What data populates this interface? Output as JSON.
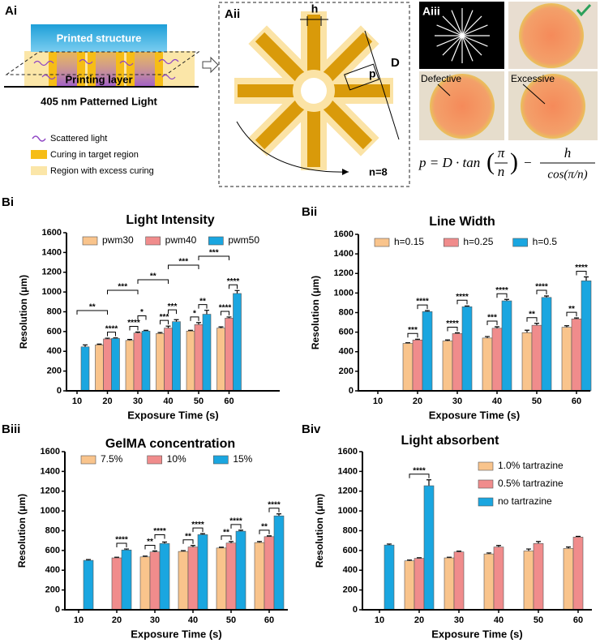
{
  "panel_a": {
    "label_i": "Ai",
    "printed_structure": "Printed structure",
    "printing_layer": "Printing layer",
    "light": "405 nm Patterned Light",
    "legend": [
      "Scattered light",
      "Curing in target region",
      "Region with excess curing"
    ],
    "label_ii": "Aii",
    "h": "h",
    "D": "D",
    "p": "p",
    "n": "n=8",
    "label_iii": "Aiii",
    "defective": "Defective",
    "excessive": "Excessive",
    "formula": {
      "lhs": "p = D · tan",
      "open": "(",
      "frac1_num": "π",
      "frac1_den": "n",
      "close": ")",
      "minus": "−",
      "frac2_num": "h",
      "frac2_den": "cos(π/n)"
    }
  },
  "chart_data": [
    {
      "type": "bar",
      "panel_label": "Bi",
      "title": "Light Intensity",
      "xlabel": "Exposure Time (s)",
      "ylabel": "Resolution (μm)",
      "categories": [
        "10",
        "20",
        "30",
        "40",
        "50",
        "60"
      ],
      "series": [
        {
          "name": "pwm30",
          "color": "#f9c48c",
          "values": [
            null,
            465,
            510,
            580,
            605,
            635
          ],
          "errors": [
            null,
            8,
            10,
            10,
            8,
            12
          ]
        },
        {
          "name": "pwm40",
          "color": "#f08c8c",
          "values": [
            null,
            525,
            585,
            635,
            670,
            735
          ],
          "errors": [
            null,
            8,
            10,
            20,
            20,
            12
          ]
        },
        {
          "name": "pwm50",
          "color": "#1aa6e0",
          "values": [
            445,
            530,
            605,
            700,
            775,
            985
          ],
          "errors": [
            20,
            6,
            8,
            20,
            40,
            30
          ]
        }
      ],
      "ylim": [
        0,
        1600
      ],
      "yticks": [
        0,
        200,
        400,
        600,
        800,
        1000,
        1200,
        1400,
        1600
      ],
      "legend": "top",
      "annotations": [
        "**",
        "****",
        "***",
        "****",
        "*",
        "**",
        "***",
        "***",
        "***",
        "*",
        "**",
        "***",
        "****",
        "****"
      ]
    },
    {
      "type": "bar",
      "panel_label": "Bii",
      "title": "Line Width",
      "xlabel": "Exposure Time (s)",
      "ylabel": "Resolution (μm)",
      "categories": [
        "10",
        "20",
        "30",
        "40",
        "50",
        "60"
      ],
      "series": [
        {
          "name": "h=0.15",
          "color": "#f9c48c",
          "values": [
            null,
            485,
            510,
            540,
            595,
            650
          ],
          "errors": [
            null,
            6,
            10,
            15,
            25,
            15
          ]
        },
        {
          "name": "h=0.25",
          "color": "#f08c8c",
          "values": [
            null,
            520,
            585,
            640,
            670,
            735
          ],
          "errors": [
            null,
            8,
            8,
            15,
            20,
            10
          ]
        },
        {
          "name": "h=0.5",
          "color": "#1aa6e0",
          "values": [
            null,
            810,
            860,
            920,
            955,
            1125
          ],
          "errors": [
            null,
            10,
            8,
            15,
            15,
            40
          ]
        }
      ],
      "ylim": [
        0,
        1600
      ],
      "yticks": [
        0,
        200,
        400,
        600,
        800,
        1000,
        1200,
        1400,
        1600
      ],
      "legend": "top",
      "annotations": [
        "***",
        "****",
        "****",
        "****",
        "***",
        "****",
        "**",
        "****",
        "**",
        "****"
      ]
    },
    {
      "type": "bar",
      "panel_label": "Biii",
      "title": "GelMA concentration",
      "xlabel": "Exposure Time (s)",
      "ylabel": "Resolution (μm)",
      "categories": [
        "10",
        "20",
        "30",
        "40",
        "50",
        "60"
      ],
      "series": [
        {
          "name": "7.5%",
          "color": "#f9c48c",
          "values": [
            null,
            null,
            535,
            590,
            625,
            680
          ],
          "errors": [
            null,
            null,
            8,
            8,
            8,
            10
          ]
        },
        {
          "name": "10%",
          "color": "#f08c8c",
          "values": [
            null,
            525,
            585,
            635,
            675,
            740
          ],
          "errors": [
            null,
            6,
            10,
            15,
            15,
            8
          ]
        },
        {
          "name": "15%",
          "color": "#1aa6e0",
          "values": [
            500,
            605,
            670,
            760,
            795,
            950
          ],
          "errors": [
            8,
            10,
            15,
            10,
            10,
            20
          ]
        }
      ],
      "ylim": [
        0,
        1600
      ],
      "yticks": [
        0,
        200,
        400,
        600,
        800,
        1000,
        1200,
        1400,
        1600
      ],
      "legend": "top",
      "annotations": [
        "****",
        "**",
        "****",
        "**",
        "****",
        "**",
        "****",
        "**",
        "****"
      ]
    },
    {
      "type": "bar",
      "panel_label": "Biv",
      "title": "Light absorbent",
      "xlabel": "Exposure Time (s)",
      "ylabel": "Resolution (μm)",
      "categories": [
        "10",
        "20",
        "30",
        "40",
        "50",
        "60"
      ],
      "series": [
        {
          "name": "1.0% tartrazine",
          "color": "#f9c48c",
          "values": [
            null,
            495,
            525,
            565,
            595,
            620
          ],
          "errors": [
            null,
            8,
            6,
            10,
            20,
            15
          ]
        },
        {
          "name": "0.5% tartrazine",
          "color": "#f08c8c",
          "values": [
            null,
            520,
            585,
            635,
            670,
            735
          ],
          "errors": [
            null,
            6,
            8,
            15,
            20,
            8
          ]
        },
        {
          "name": "no tartrazine",
          "color": "#1aa6e0",
          "values": [
            655,
            1255,
            null,
            null,
            null,
            null
          ],
          "errors": [
            10,
            60,
            null,
            null,
            null,
            null
          ]
        }
      ],
      "ylim": [
        0,
        1600
      ],
      "yticks": [
        0,
        200,
        400,
        600,
        800,
        1000,
        1200,
        1400,
        1600
      ],
      "legend": "upper right",
      "annotations": [
        "****"
      ]
    }
  ]
}
